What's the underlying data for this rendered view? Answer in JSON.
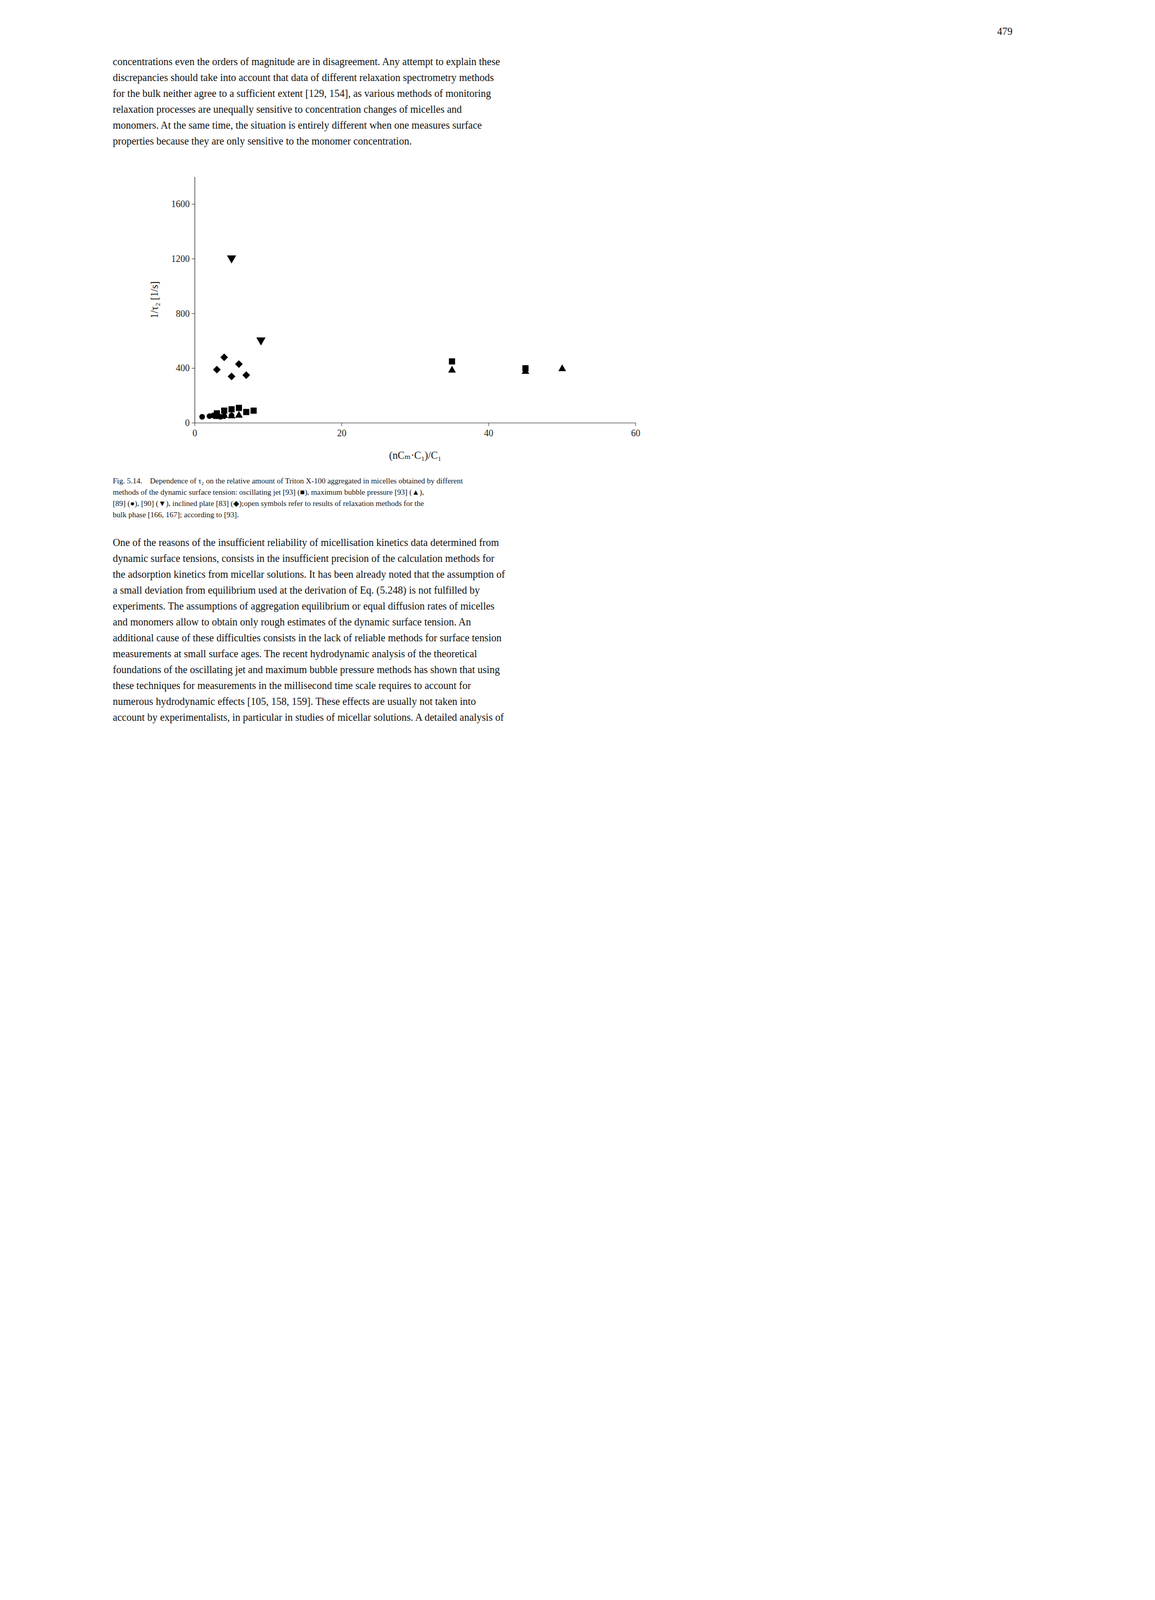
{
  "page_number": "479",
  "para1": [
    "concentrations even the orders of magnitude are in disagreement. Any attempt to explain these",
    "discrepancies should take into account that data of different relaxation spectrometry methods",
    "for the bulk neither agree to a sufficient extent [129, 154], as various methods of monitoring",
    "relaxation processes are unequally sensitive to concentration changes of micelles and",
    "monomers. At the same time, the situation is entirely different when one measures surface",
    "properties because they are only sensitive to the monomer concentration."
  ],
  "caption": [
    "Fig. 5.14. Dependence of τ₂ on the relative amount of Triton X-100 aggregated in micelles obtained by different",
    "methods of the dynamic surface tension: oscillating jet [93] (■), maximum bubble pressure [93] (▲),",
    "[89] (●), [90] (▼), inclined plate [83] (◆);open symbols refer to results of relaxation methods for the",
    "bulk phase [166, 167]; according to [93]."
  ],
  "para2": [
    "One of the reasons of the insufficient reliability of micellisation kinetics data determined from",
    "dynamic surface tensions, consists in the insufficient precision of the calculation methods for",
    "the adsorption kinetics from micellar solutions. It has been already noted that the assumption of",
    "a small deviation from equilibrium used at the derivation of Eq. (5.248) is not fulfilled by",
    "experiments. The assumptions of aggregation equilibrium or equal diffusion rates of micelles",
    "and monomers allow to obtain only rough estimates of the dynamic surface tension. An",
    "additional cause of these difficulties consists in the lack of reliable methods for surface tension",
    "measurements at small surface ages. The recent hydrodynamic analysis of the theoretical",
    "foundations of the oscillating jet and maximum bubble pressure methods has shown that using",
    "these techniques for measurements in the millisecond time scale requires to account for",
    "numerous hydrodynamic effects [105, 158, 159]. These effects are usually not taken into",
    "account by experimentalists, in particular in studies of micellar solutions. A detailed analysis of"
  ],
  "chart_data": {
    "type": "scatter",
    "xlabel": "(nCₘ·C₁)/C₁",
    "ylabel": "1/τ₂ [1/s]",
    "xlim": [
      0,
      60
    ],
    "ylim": [
      0,
      1800
    ],
    "xticks": [
      0,
      20,
      40,
      60
    ],
    "yticks": [
      0,
      400,
      800,
      1200,
      1600
    ],
    "grid": false,
    "series": [
      {
        "marker": "triangle-down",
        "color": "black",
        "x": [
          5,
          9
        ],
        "values": [
          1200,
          600
        ]
      },
      {
        "marker": "square",
        "color": "black",
        "x": [
          3,
          4,
          5,
          6,
          7,
          8,
          35,
          45
        ],
        "values": [
          70,
          90,
          100,
          110,
          80,
          90,
          450,
          400
        ]
      },
      {
        "marker": "triangle-up",
        "color": "black",
        "x": [
          3,
          4,
          5,
          6,
          35,
          45,
          50
        ],
        "values": [
          50,
          60,
          55,
          60,
          390,
          380,
          400
        ]
      },
      {
        "marker": "circle",
        "color": "black",
        "x": [
          1,
          2,
          2.5,
          3,
          3.5,
          4,
          5
        ],
        "values": [
          45,
          50,
          55,
          50,
          45,
          50,
          55
        ]
      },
      {
        "marker": "diamond",
        "color": "black",
        "x": [
          3,
          4,
          5,
          6,
          7
        ],
        "values": [
          390,
          480,
          340,
          430,
          350
        ]
      }
    ]
  }
}
